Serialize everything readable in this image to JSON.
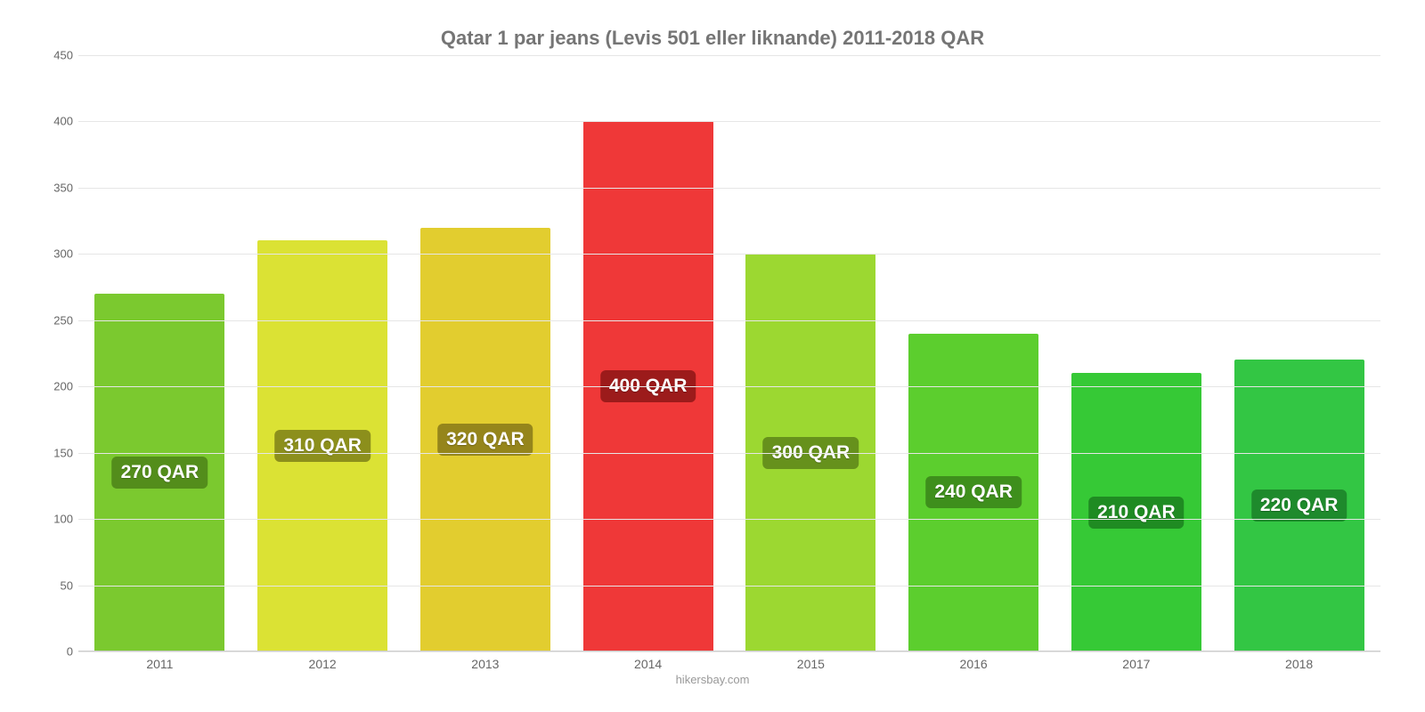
{
  "chart": {
    "type": "bar",
    "title": "Qatar 1 par jeans (Levis 501 eller liknande) 2011-2018 QAR",
    "title_fontsize": 22,
    "title_color": "#757575",
    "attribution": "hikersbay.com",
    "background_color": "#ffffff",
    "grid_color": "#e6e6e6",
    "baseline_color": "#cccccc",
    "axis_text_color": "#666666",
    "categories": [
      "2011",
      "2012",
      "2013",
      "2014",
      "2015",
      "2016",
      "2017",
      "2018"
    ],
    "values": [
      270,
      310,
      320,
      400,
      300,
      240,
      210,
      220
    ],
    "bar_labels": [
      "270 QAR",
      "310 QAR",
      "320 QAR",
      "400 QAR",
      "300 QAR",
      "240 QAR",
      "210 QAR",
      "220 QAR"
    ],
    "bar_colors": [
      "#7bc92f",
      "#dbe234",
      "#e2cd2f",
      "#ef3838",
      "#9cd831",
      "#5cce2e",
      "#36c936",
      "#33c644"
    ],
    "bar_label_bg": [
      "#538d1b",
      "#8c8f1c",
      "#95851b",
      "#9c1b1b",
      "#66911c",
      "#3e8f1c",
      "#1f8b22",
      "#1e8a2c"
    ],
    "bar_label_fontsize": 21,
    "ylim": [
      0,
      450
    ],
    "ytick_step": 50,
    "ytick_labels": [
      "0",
      "50",
      "100",
      "150",
      "200",
      "250",
      "300",
      "350",
      "400",
      "450"
    ],
    "bar_width_pct": 80,
    "x_fontsize": 14,
    "y_fontsize": 13
  }
}
